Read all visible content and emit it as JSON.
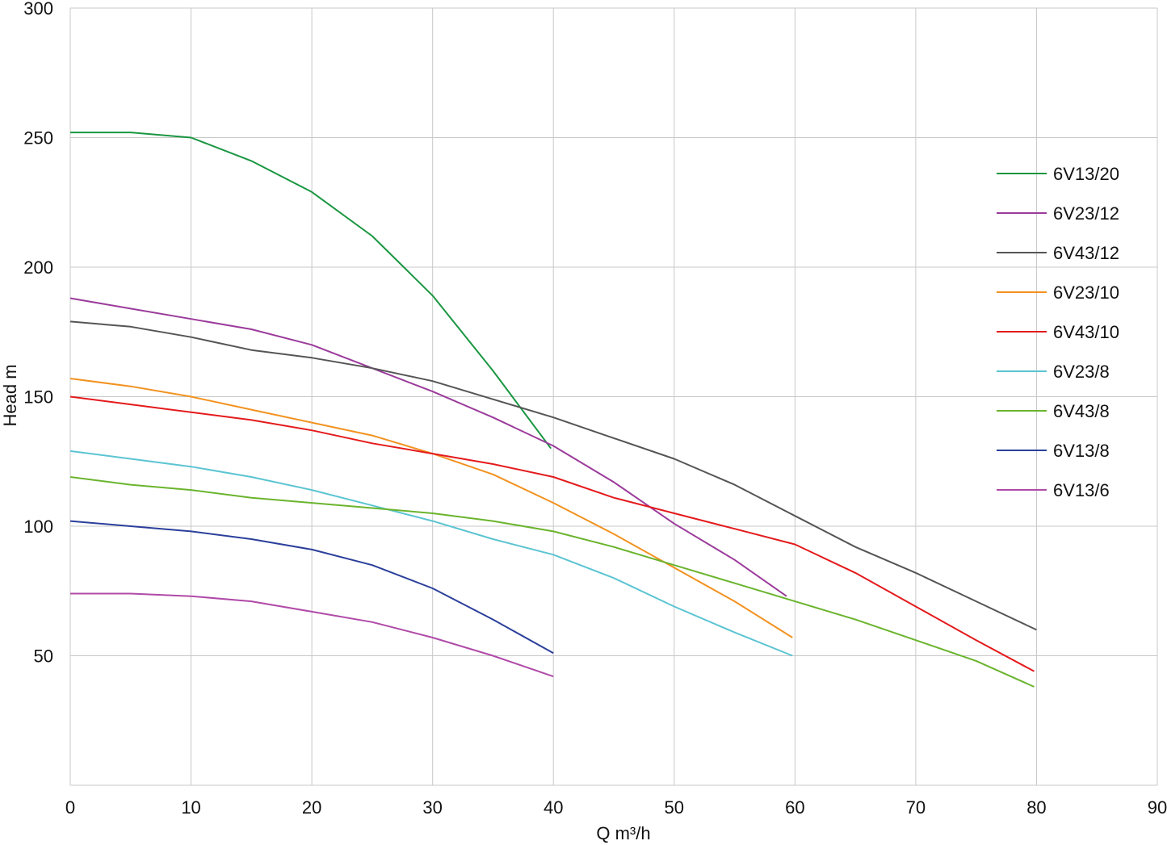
{
  "chart_data": {
    "type": "line",
    "title": "",
    "xlabel": "Q m³/h",
    "ylabel": "Head m",
    "xlim": [
      0,
      90
    ],
    "ylim": [
      0,
      300
    ],
    "x_ticks": [
      0,
      10,
      20,
      30,
      40,
      50,
      60,
      70,
      80,
      90
    ],
    "y_ticks": [
      50,
      100,
      150,
      200,
      250,
      300
    ],
    "grid": true,
    "legend_position": "right",
    "series": [
      {
        "name": "6V13/20",
        "color": "#1a9641",
        "points": [
          [
            0,
            252
          ],
          [
            5,
            252
          ],
          [
            10,
            250
          ],
          [
            15,
            241
          ],
          [
            20,
            229
          ],
          [
            25,
            212
          ],
          [
            30,
            189
          ],
          [
            35,
            160
          ],
          [
            39.8,
            130
          ]
        ]
      },
      {
        "name": "6V23/12",
        "color": "#9b3b9b",
        "points": [
          [
            0,
            188
          ],
          [
            5,
            184
          ],
          [
            10,
            180
          ],
          [
            15,
            176
          ],
          [
            20,
            170
          ],
          [
            25,
            161
          ],
          [
            30,
            152
          ],
          [
            35,
            142
          ],
          [
            40,
            131
          ],
          [
            45,
            117
          ],
          [
            50,
            101
          ],
          [
            55,
            87
          ],
          [
            59.3,
            73
          ]
        ]
      },
      {
        "name": "6V43/12",
        "color": "#555555",
        "points": [
          [
            0,
            179
          ],
          [
            5,
            177
          ],
          [
            10,
            173
          ],
          [
            15,
            168
          ],
          [
            20,
            165
          ],
          [
            25,
            161
          ],
          [
            30,
            156
          ],
          [
            35,
            149
          ],
          [
            40,
            142
          ],
          [
            45,
            134
          ],
          [
            50,
            126
          ],
          [
            55,
            116
          ],
          [
            60,
            104
          ],
          [
            65,
            92
          ],
          [
            70,
            82
          ],
          [
            75,
            71
          ],
          [
            80,
            60
          ]
        ]
      },
      {
        "name": "6V23/10",
        "color": "#f29220",
        "points": [
          [
            0,
            157
          ],
          [
            5,
            154
          ],
          [
            10,
            150
          ],
          [
            15,
            145
          ],
          [
            20,
            140
          ],
          [
            25,
            135
          ],
          [
            30,
            128
          ],
          [
            35,
            120
          ],
          [
            40,
            109
          ],
          [
            45,
            97
          ],
          [
            50,
            84
          ],
          [
            55,
            71
          ],
          [
            59.8,
            57
          ]
        ]
      },
      {
        "name": "6V43/10",
        "color": "#e41a1c",
        "points": [
          [
            0,
            150
          ],
          [
            5,
            147
          ],
          [
            10,
            144
          ],
          [
            15,
            141
          ],
          [
            20,
            137
          ],
          [
            25,
            132
          ],
          [
            30,
            128
          ],
          [
            35,
            124
          ],
          [
            40,
            119
          ],
          [
            45,
            111
          ],
          [
            50,
            105
          ],
          [
            55,
            99
          ],
          [
            60,
            93
          ],
          [
            65,
            82
          ],
          [
            70,
            69
          ],
          [
            75,
            56
          ],
          [
            79.8,
            44
          ]
        ]
      },
      {
        "name": "6V23/8",
        "color": "#5bc4d2",
        "points": [
          [
            0,
            129
          ],
          [
            5,
            126
          ],
          [
            10,
            123
          ],
          [
            15,
            119
          ],
          [
            20,
            114
          ],
          [
            25,
            108
          ],
          [
            30,
            102
          ],
          [
            35,
            95
          ],
          [
            40,
            89
          ],
          [
            45,
            80
          ],
          [
            50,
            69
          ],
          [
            55,
            59
          ],
          [
            59.8,
            50
          ]
        ]
      },
      {
        "name": "6V43/8",
        "color": "#6ab42d",
        "points": [
          [
            0,
            119
          ],
          [
            5,
            116
          ],
          [
            10,
            114
          ],
          [
            15,
            111
          ],
          [
            20,
            109
          ],
          [
            25,
            107
          ],
          [
            30,
            105
          ],
          [
            35,
            102
          ],
          [
            40,
            98
          ],
          [
            45,
            92
          ],
          [
            50,
            85
          ],
          [
            55,
            78
          ],
          [
            60,
            71
          ],
          [
            65,
            64
          ],
          [
            70,
            56
          ],
          [
            75,
            48
          ],
          [
            79.8,
            38
          ]
        ]
      },
      {
        "name": "6V13/8",
        "color": "#2b3f9b",
        "points": [
          [
            0,
            102
          ],
          [
            5,
            100
          ],
          [
            10,
            98
          ],
          [
            15,
            95
          ],
          [
            20,
            91
          ],
          [
            25,
            85
          ],
          [
            30,
            76
          ],
          [
            35,
            64
          ],
          [
            40,
            51
          ]
        ]
      },
      {
        "name": "6V13/6",
        "color": "#b04aa8",
        "points": [
          [
            0,
            74
          ],
          [
            5,
            74
          ],
          [
            10,
            73
          ],
          [
            15,
            71
          ],
          [
            20,
            67
          ],
          [
            25,
            63
          ],
          [
            30,
            57
          ],
          [
            35,
            50
          ],
          [
            40,
            42
          ]
        ]
      }
    ]
  }
}
